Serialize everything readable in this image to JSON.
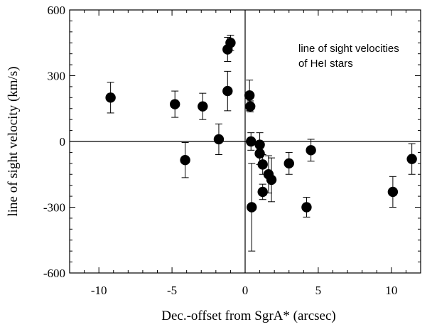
{
  "chart_data": {
    "type": "scatter",
    "title": "",
    "xlabel": "Dec.-offset from SgrA* (arcsec)",
    "ylabel": "line of sight velocity (km/s)",
    "xlim": [
      -12,
      12
    ],
    "ylim": [
      -600,
      600
    ],
    "x_ticks": [
      -10,
      -5,
      0,
      5,
      10
    ],
    "y_ticks": [
      600,
      300,
      0,
      -300,
      -600
    ],
    "x_tick_labels": [
      "-10",
      "-5",
      "0",
      "5",
      "10"
    ],
    "y_tick_labels": [
      "600",
      "300",
      "0",
      "-300",
      "-600"
    ],
    "grid": false,
    "zero_lines": true,
    "annotation": [
      "line of sight velocities",
      "of HeI stars"
    ],
    "points": [
      {
        "x": -9.2,
        "y": 200,
        "err": 70
      },
      {
        "x": -4.8,
        "y": 170,
        "err": 60
      },
      {
        "x": -4.1,
        "y": -85,
        "err": 80
      },
      {
        "x": -2.9,
        "y": 160,
        "err": 60
      },
      {
        "x": -1.8,
        "y": 10,
        "err": 70
      },
      {
        "x": -1.2,
        "y": 230,
        "err": 90
      },
      {
        "x": -1.2,
        "y": 420,
        "err": 55
      },
      {
        "x": -1.0,
        "y": 450,
        "err": 35
      },
      {
        "x": 0.3,
        "y": 210,
        "err": 70
      },
      {
        "x": 0.35,
        "y": 160,
        "err": 25
      },
      {
        "x": 0.4,
        "y": 0,
        "err": 40
      },
      {
        "x": 0.45,
        "y": -300,
        "err": 200
      },
      {
        "x": 1.0,
        "y": -15,
        "err": 55
      },
      {
        "x": 1.0,
        "y": -55,
        "err": 50
      },
      {
        "x": 1.2,
        "y": -105,
        "err": 45
      },
      {
        "x": 1.2,
        "y": -230,
        "err": 35
      },
      {
        "x": 1.6,
        "y": -150,
        "err": 85
      },
      {
        "x": 1.8,
        "y": -175,
        "err": 100
      },
      {
        "x": 3.0,
        "y": -100,
        "err": 50
      },
      {
        "x": 4.2,
        "y": -300,
        "err": 45
      },
      {
        "x": 4.5,
        "y": -40,
        "err": 50
      },
      {
        "x": 10.1,
        "y": -230,
        "err": 70
      },
      {
        "x": 11.4,
        "y": -80,
        "err": 70
      }
    ]
  }
}
